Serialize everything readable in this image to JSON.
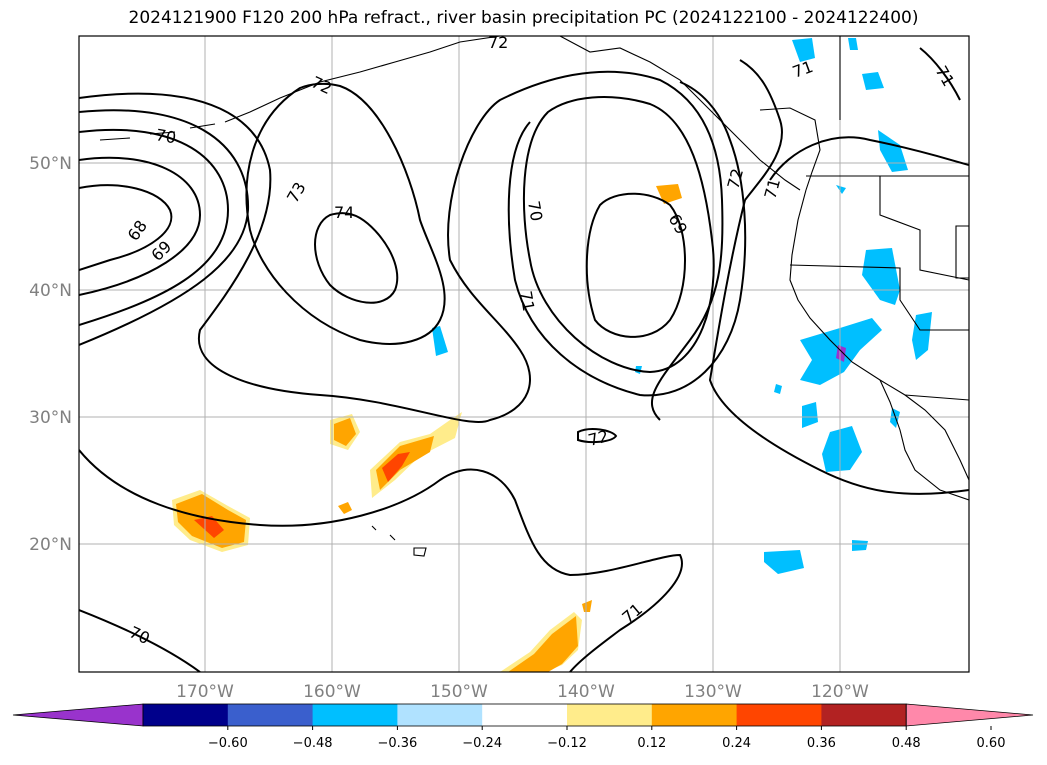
{
  "title": "2024121900 F120 200 hPa refract., river basin precipitation PC (2024122100 - 2024122400)",
  "map": {
    "lat_labels": [
      "50°N",
      "40°N",
      "30°N",
      "20°N"
    ],
    "lon_labels": [
      "170°W",
      "160°W",
      "150°W",
      "140°W",
      "130°W",
      "120°W"
    ],
    "grid": true,
    "projection_extent": {
      "lon": [
        -180,
        -110
      ],
      "lat": [
        10,
        60
      ]
    }
  },
  "contour_labels": [
    "72",
    "72",
    "71",
    "70",
    "73",
    "74",
    "68",
    "69",
    "70",
    "71",
    "69",
    "72",
    "71",
    "72",
    "70",
    "71",
    "71"
  ],
  "colorbar": {
    "ticks": [
      "−0.60",
      "−0.48",
      "−0.36",
      "−0.24",
      "−0.12",
      "0.12",
      "0.24",
      "0.36",
      "0.48",
      "0.60"
    ],
    "colors": [
      "#9933cc",
      "#00008b",
      "#3a5fcd",
      "#00bfff",
      "#b0e2ff",
      "#ffffff",
      "#ffec8b",
      "#ffa500",
      "#ff4500",
      "#b22222",
      "#ff88aa"
    ]
  }
}
